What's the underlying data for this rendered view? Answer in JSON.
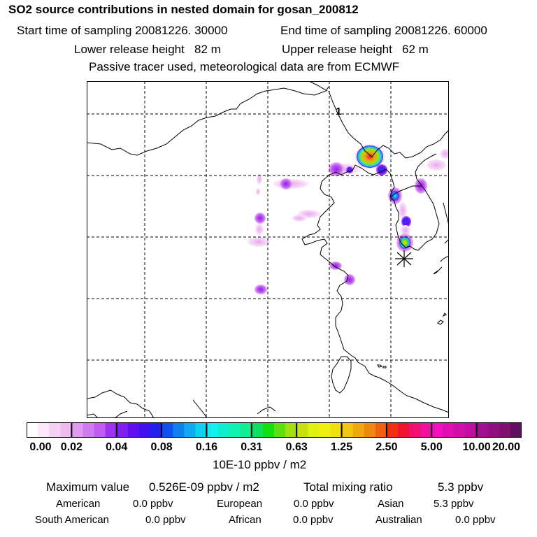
{
  "header": {
    "title": "SO2 source contributions in nested domain for gosan_200812",
    "start_time": "Start time of sampling 20081226. 30000",
    "end_time": "End time of sampling 20081226. 60000",
    "lower_release": "Lower release height   82 m",
    "upper_release": "Upper release height   62 m",
    "tracer_note": "Passive tracer used, meteorological data are from ECMWF"
  },
  "map": {
    "marker_label": "1",
    "receptor_icon": "asterisk-icon"
  },
  "colorbar": {
    "tick_labels": [
      "0.00",
      "0.02",
      "0.04",
      "0.08",
      "0.16",
      "0.31",
      "0.63",
      "1.25",
      "2.50",
      "5.00",
      "10.00",
      "20.00"
    ],
    "units": "10E-10 ppbv / m2",
    "colors": [
      "#ffffff",
      "#fbe8fb",
      "#f5d0f5",
      "#eebaf0",
      "#e09af0",
      "#d07af0",
      "#c05cf0",
      "#a030f0",
      "#8020f0",
      "#6010f0",
      "#4010f0",
      "#2020f0",
      "#1050f0",
      "#1080f0",
      "#10a8f0",
      "#10d0f0",
      "#10f0f0",
      "#10f0d0",
      "#10f0b0",
      "#10f090",
      "#10e060",
      "#10e010",
      "#60e010",
      "#a0e010",
      "#c8e010",
      "#e0f010",
      "#f0f010",
      "#f0e010",
      "#f0c810",
      "#f0a810",
      "#f08810",
      "#f06010",
      "#f03010",
      "#f01030",
      "#f01070",
      "#f010a0",
      "#f010c0",
      "#e010b0",
      "#d010a8",
      "#c010a0",
      "#a01090",
      "#901080",
      "#801070",
      "#601060"
    ]
  },
  "stats": {
    "max_label": "Maximum value",
    "max_value": "0.526E-09 ppbv / m2",
    "total_label": "Total mixing ratio",
    "total_value": "5.3 ppbv"
  },
  "regions": [
    {
      "name": "American",
      "value": "0.0 ppbv"
    },
    {
      "name": "European",
      "value": "0.0 ppbv"
    },
    {
      "name": "Asian",
      "value": "5.3 ppbv"
    },
    {
      "name": "South American",
      "value": "0.0 ppbv"
    },
    {
      "name": "African",
      "value": "0.0 ppbv"
    },
    {
      "name": "Australian",
      "value": "0.0 ppbv"
    }
  ]
}
